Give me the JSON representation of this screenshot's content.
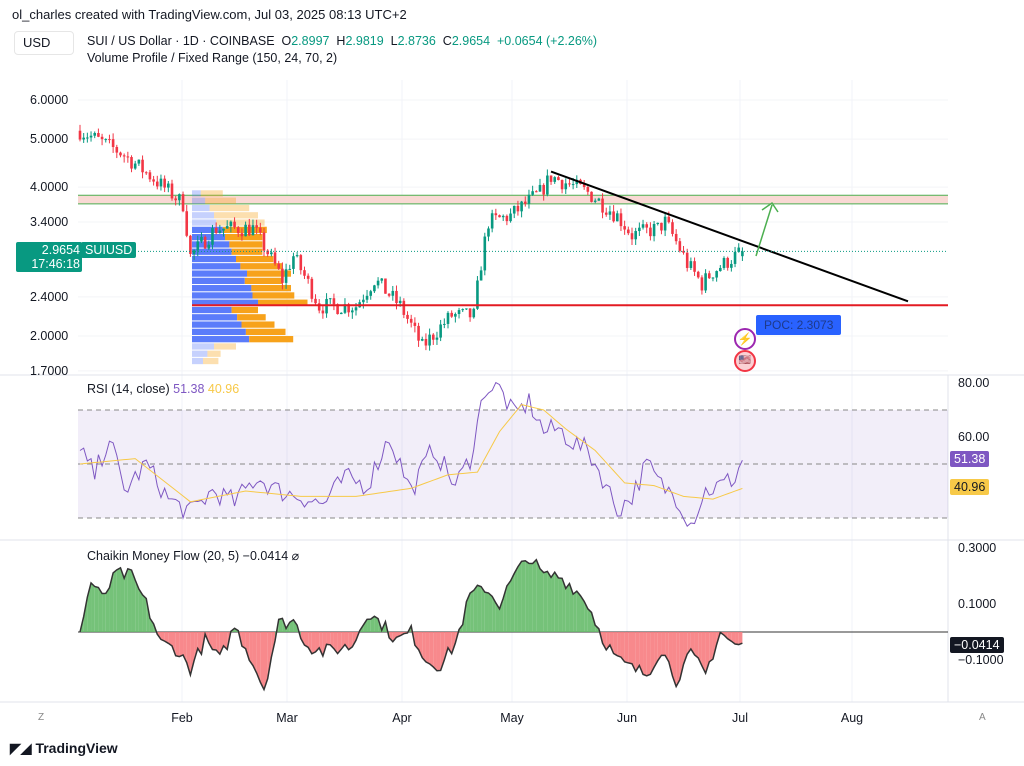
{
  "header": {
    "credit": "ol_charles created with TradingView.com, Jul 03, 2025 08:13 UTC+2",
    "currency": "USD",
    "symbol": "SUI / US Dollar · 1D · COINBASE",
    "o_label": "O",
    "o": "2.8997",
    "h_label": "H",
    "h": "2.9819",
    "l_label": "L",
    "l": "2.8736",
    "c_label": "C",
    "c": "2.9654",
    "change": "+0.0654 (+2.26%)",
    "indicator": "Volume Profile / Fixed Range (150, 24, 70, 2)"
  },
  "price_tag": {
    "price": "2.9654",
    "countdown": "17:46:18",
    "symbol": "SUIUSD"
  },
  "poc_label": "POC: 2.3073",
  "rsi": {
    "title": "RSI (14, close)",
    "value": "51.38",
    "ma": "40.96",
    "color": "#7e57c2",
    "ma_color": "#f7c948"
  },
  "cmf": {
    "title": "Chaikin Money Flow (20, 5)",
    "value": "−0.0414",
    "value_tag": "−0.0414",
    "icon": "hidden-eye-icon"
  },
  "footer": {
    "logo": "TradingView",
    "left_btn": "Z",
    "right_btn": "A"
  },
  "colors": {
    "up": "#089981",
    "down": "#f23645",
    "accent": "#2962ff"
  },
  "chart_data": [
    {
      "type": "candlestick",
      "title": "SUI / US Dollar 1D",
      "scale": "log",
      "yticks": [
        "6.0000",
        "5.0000",
        "4.0000",
        "3.4000",
        "2.4000",
        "2.0000",
        "1.7000"
      ],
      "ytick_values": [
        6,
        5,
        4,
        3.4,
        2.4,
        2,
        1.7
      ],
      "xticks": [
        "Feb",
        "Mar",
        "Apr",
        "May",
        "Jun",
        "Jul",
        "Aug"
      ],
      "close_keypoints": {
        "day": [
          0,
          11,
          21,
          28,
          30,
          37,
          47,
          55,
          58,
          65,
          75,
          80,
          87,
          93,
          101,
          107,
          111,
          117,
          125,
          128,
          138,
          146,
          150,
          157,
          159,
          165,
          169,
          172,
          180
        ],
        "price": [
          5.2,
          4.7,
          4.1,
          3.7,
          2.9,
          3.3,
          3.3,
          2.6,
          2.9,
          2.3,
          2.3,
          2.6,
          2.3,
          1.9,
          2.2,
          2.2,
          3.4,
          3.5,
          3.9,
          4.2,
          3.9,
          3.5,
          3.2,
          3.3,
          3.4,
          2.8,
          2.55,
          2.7,
          2.9654
        ]
      },
      "zone": [
        3.7,
        3.85
      ],
      "poc": 2.3073,
      "trendline": [
        [
          128,
          4.3
        ],
        [
          225,
          2.35
        ]
      ],
      "volume_profile": {
        "price_low": 1.75,
        "price_high": 3.95,
        "bins": 24,
        "up": [
          10,
          14,
          20,
          52,
          49,
          45,
          41,
          36,
          60,
          55,
          54,
          48,
          50,
          44,
          40,
          36,
          34,
          30,
          28,
          22,
          20,
          16,
          12,
          8
        ],
        "down": [
          14,
          12,
          20,
          40,
          36,
          30,
          26,
          24,
          45,
          38,
          36,
          34,
          40,
          38,
          34,
          28,
          30,
          34,
          40,
          44,
          40,
          36,
          28,
          20
        ]
      }
    },
    {
      "type": "line",
      "title": "RSI (14, close)",
      "ylim": [
        20,
        85
      ],
      "yticks": [
        "80.00",
        "60.00"
      ],
      "bands": [
        30,
        70
      ],
      "rsi": {
        "day": [
          0,
          4,
          8,
          12,
          18,
          24,
          30,
          36,
          42,
          48,
          54,
          60,
          66,
          72,
          78,
          84,
          90,
          96,
          102,
          106,
          110,
          114,
          118,
          122,
          126,
          130,
          134,
          138,
          142,
          146,
          150,
          154,
          158,
          162,
          166,
          170,
          174,
          178,
          180
        ],
        "value": [
          55,
          46,
          60,
          40,
          50,
          37,
          32,
          40,
          36,
          45,
          40,
          38,
          35,
          45,
          42,
          60,
          40,
          56,
          42,
          52,
          78,
          78,
          68,
          73,
          62,
          63,
          58,
          55,
          45,
          33,
          38,
          50,
          42,
          38,
          28,
          40,
          42,
          45,
          51.38
        ]
      },
      "ma": {
        "day": [
          0,
          15,
          30,
          45,
          60,
          75,
          90,
          100,
          108,
          114,
          120,
          126,
          132,
          140,
          148,
          156,
          164,
          172,
          180
        ],
        "value": [
          50,
          52,
          36,
          40,
          38,
          38,
          41,
          46,
          47,
          62,
          72,
          70,
          63,
          55,
          43,
          42,
          38,
          37,
          40.96
        ]
      }
    },
    {
      "type": "area",
      "title": "Chaikin Money Flow (20, 5)",
      "ylim": [
        -0.22,
        0.32
      ],
      "yticks": [
        "0.3000",
        "0.1000",
        "−0.1000"
      ],
      "day": [
        0,
        3,
        6,
        10,
        14,
        18,
        22,
        26,
        30,
        34,
        38,
        42,
        46,
        50,
        54,
        58,
        62,
        66,
        70,
        74,
        78,
        82,
        86,
        90,
        94,
        98,
        102,
        106,
        110,
        114,
        118,
        122,
        126,
        130,
        134,
        138,
        142,
        146,
        150,
        154,
        158,
        162,
        166,
        170,
        174,
        178,
        180
      ],
      "value": [
        0,
        0.18,
        0.12,
        0.21,
        0.2,
        0.1,
        -0.04,
        -0.06,
        -0.13,
        -0.03,
        -0.1,
        0.02,
        -0.08,
        -0.2,
        0.03,
        0.04,
        -0.05,
        -0.07,
        -0.06,
        -0.05,
        0.07,
        0.03,
        -0.03,
        0.0,
        -0.1,
        -0.12,
        -0.04,
        0.13,
        0.16,
        0.1,
        0.2,
        0.27,
        0.2,
        0.2,
        0.16,
        0.1,
        -0.02,
        -0.1,
        -0.13,
        -0.15,
        -0.06,
        -0.17,
        -0.08,
        -0.15,
        0.0,
        -0.05,
        -0.04
      ]
    }
  ]
}
